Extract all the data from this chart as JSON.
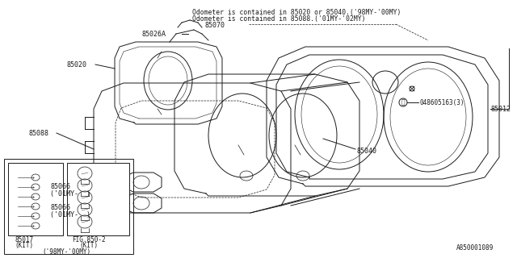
{
  "bg_color": "#ffffff",
  "line_color": "#1a1a1a",
  "note1": "Odometer is contained in 85020 or 85040.('98MY-'00MY)",
  "note2": "Odometer is contained in 85088.('01MY-'02MY)",
  "diagram_id": "A850001089",
  "font_size": 6.0,
  "lw": 0.7
}
